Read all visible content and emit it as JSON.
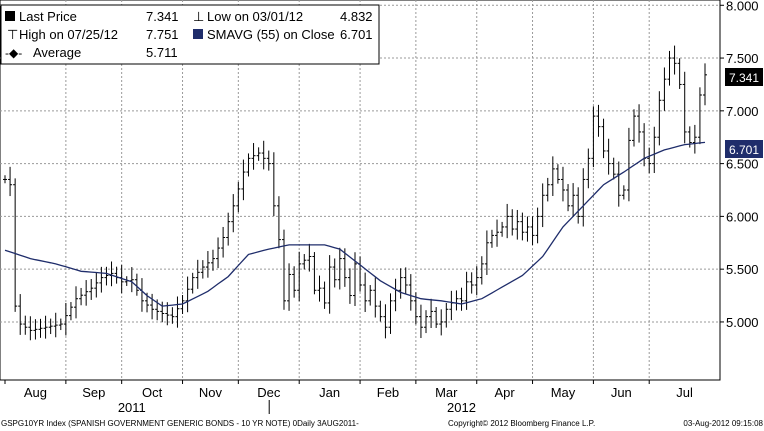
{
  "chart_data": {
    "type": "line",
    "subtype": "ohlc-bars",
    "title": "",
    "xlabel": "",
    "ylabel": "",
    "ylim": [
      4.45,
      8.05
    ],
    "y_ticks": [
      "5.000",
      "5.500",
      "6.000",
      "6.500",
      "7.000",
      "7.500",
      "8.000"
    ],
    "grid": true,
    "legend_position": "top-left",
    "x_months": [
      "Aug",
      "Sep",
      "Oct",
      "Nov",
      "Dec",
      "Jan",
      "Feb",
      "Mar",
      "Apr",
      "May",
      "Jun",
      "Jul"
    ],
    "x_years": [
      "2011",
      "2012"
    ],
    "legend": {
      "last_label": "Last Price",
      "last_value": "7.341",
      "high_label": "High on 07/25/12",
      "high_value": "7.751",
      "low_label": "Low on 03/01/12",
      "low_value": "4.832",
      "avg_label": "Average",
      "avg_value": "5.711",
      "sma_label": "SMAVG (55)  on Close",
      "sma_value": "6.701"
    },
    "last_price_marker": "7.341",
    "sma_marker": "6.701",
    "series": [
      {
        "name": "Last Price",
        "color": "#000000",
        "anchors": [
          [
            0,
            6.35
          ],
          [
            1,
            6.3
          ],
          [
            2,
            5.15
          ],
          [
            3,
            4.98
          ],
          [
            5,
            4.92
          ],
          [
            8,
            4.95
          ],
          [
            11,
            4.98
          ],
          [
            14,
            5.22
          ],
          [
            17,
            5.32
          ],
          [
            19,
            5.42
          ],
          [
            21,
            5.46
          ],
          [
            23,
            5.38
          ],
          [
            25,
            5.4
          ],
          [
            27,
            5.2
          ],
          [
            29,
            5.12
          ],
          [
            31,
            5.08
          ],
          [
            33,
            5.05
          ],
          [
            35,
            5.2
          ],
          [
            37,
            5.42
          ],
          [
            39,
            5.52
          ],
          [
            41,
            5.6
          ],
          [
            43,
            5.8
          ],
          [
            45,
            6.1
          ],
          [
            47,
            6.42
          ],
          [
            48,
            6.55
          ],
          [
            50,
            6.6
          ],
          [
            52,
            6.5
          ],
          [
            53,
            6.1
          ],
          [
            54,
            5.78
          ],
          [
            55,
            5.2
          ],
          [
            56,
            5.45
          ],
          [
            57,
            5.3
          ],
          [
            58,
            5.55
          ],
          [
            60,
            5.62
          ],
          [
            61,
            5.3
          ],
          [
            62,
            5.32
          ],
          [
            63,
            5.18
          ],
          [
            64,
            5.52
          ],
          [
            65,
            5.4
          ],
          [
            66,
            5.6
          ],
          [
            67,
            5.42
          ],
          [
            68,
            5.25
          ],
          [
            69,
            5.55
          ],
          [
            70,
            5.35
          ],
          [
            71,
            5.2
          ],
          [
            72,
            5.3
          ],
          [
            73,
            5.15
          ],
          [
            74,
            5.05
          ],
          [
            75,
            4.95
          ],
          [
            76,
            5.2
          ],
          [
            77,
            5.3
          ],
          [
            78,
            5.42
          ],
          [
            79,
            5.35
          ],
          [
            80,
            5.2
          ],
          [
            81,
            5.05
          ],
          [
            82,
            4.95
          ],
          [
            83,
            5.05
          ],
          [
            84,
            5.1
          ],
          [
            85,
            4.98
          ],
          [
            86,
            5.0
          ],
          [
            87,
            5.12
          ],
          [
            88,
            5.18
          ],
          [
            89,
            5.22
          ],
          [
            90,
            5.2
          ],
          [
            91,
            5.38
          ],
          [
            92,
            5.35
          ],
          [
            93,
            5.42
          ],
          [
            94,
            5.55
          ],
          [
            95,
            5.75
          ],
          [
            96,
            5.82
          ],
          [
            97,
            5.85
          ],
          [
            98,
            5.9
          ],
          [
            99,
            6.0
          ],
          [
            100,
            5.88
          ],
          [
            101,
            5.95
          ],
          [
            102,
            5.85
          ],
          [
            103,
            5.9
          ],
          [
            104,
            5.82
          ],
          [
            105,
            6.0
          ],
          [
            106,
            6.2
          ],
          [
            107,
            6.3
          ],
          [
            108,
            6.45
          ],
          [
            109,
            6.35
          ],
          [
            110,
            6.25
          ],
          [
            111,
            6.1
          ],
          [
            112,
            6.2
          ],
          [
            113,
            6.0
          ],
          [
            114,
            6.35
          ],
          [
            115,
            6.55
          ],
          [
            116,
            6.95
          ],
          [
            117,
            6.85
          ],
          [
            118,
            6.62
          ],
          [
            119,
            6.5
          ],
          [
            120,
            6.4
          ],
          [
            121,
            6.2
          ],
          [
            122,
            6.25
          ],
          [
            123,
            6.72
          ],
          [
            124,
            6.95
          ],
          [
            125,
            6.8
          ],
          [
            126,
            6.55
          ],
          [
            127,
            6.5
          ],
          [
            128,
            6.75
          ],
          [
            129,
            7.1
          ],
          [
            130,
            7.3
          ],
          [
            131,
            7.5
          ],
          [
            132,
            7.45
          ],
          [
            133,
            7.25
          ],
          [
            134,
            6.8
          ],
          [
            135,
            6.7
          ],
          [
            136,
            6.75
          ],
          [
            137,
            7.15
          ],
          [
            138,
            7.341
          ]
        ]
      },
      {
        "name": "SMAVG (55)  on Close",
        "color": "#1f2d6b",
        "anchors": [
          [
            0,
            5.68
          ],
          [
            5,
            5.6
          ],
          [
            10,
            5.55
          ],
          [
            15,
            5.48
          ],
          [
            20,
            5.46
          ],
          [
            25,
            5.38
          ],
          [
            28,
            5.25
          ],
          [
            31,
            5.15
          ],
          [
            35,
            5.17
          ],
          [
            40,
            5.29
          ],
          [
            44,
            5.43
          ],
          [
            48,
            5.64
          ],
          [
            52,
            5.69
          ],
          [
            56,
            5.73
          ],
          [
            60,
            5.73
          ],
          [
            63,
            5.73
          ],
          [
            66,
            5.69
          ],
          [
            70,
            5.54
          ],
          [
            74,
            5.39
          ],
          [
            78,
            5.28
          ],
          [
            82,
            5.22
          ],
          [
            86,
            5.2
          ],
          [
            90,
            5.17
          ],
          [
            94,
            5.22
          ],
          [
            98,
            5.33
          ],
          [
            102,
            5.44
          ],
          [
            106,
            5.62
          ],
          [
            110,
            5.9
          ],
          [
            114,
            6.1
          ],
          [
            118,
            6.3
          ],
          [
            122,
            6.42
          ],
          [
            126,
            6.55
          ],
          [
            130,
            6.63
          ],
          [
            134,
            6.68
          ],
          [
            138,
            6.701
          ]
        ]
      }
    ]
  },
  "footer": {
    "left": "GSPG10YR Index (SPANISH GOVERNMENT GENERIC BONDS - 10 YR NOTE) 0Daily 3AUG2011-",
    "middle": "Copyright© 2012 Bloomberg Finance L.P.",
    "right": "03-Aug-2012 09:15:08"
  }
}
